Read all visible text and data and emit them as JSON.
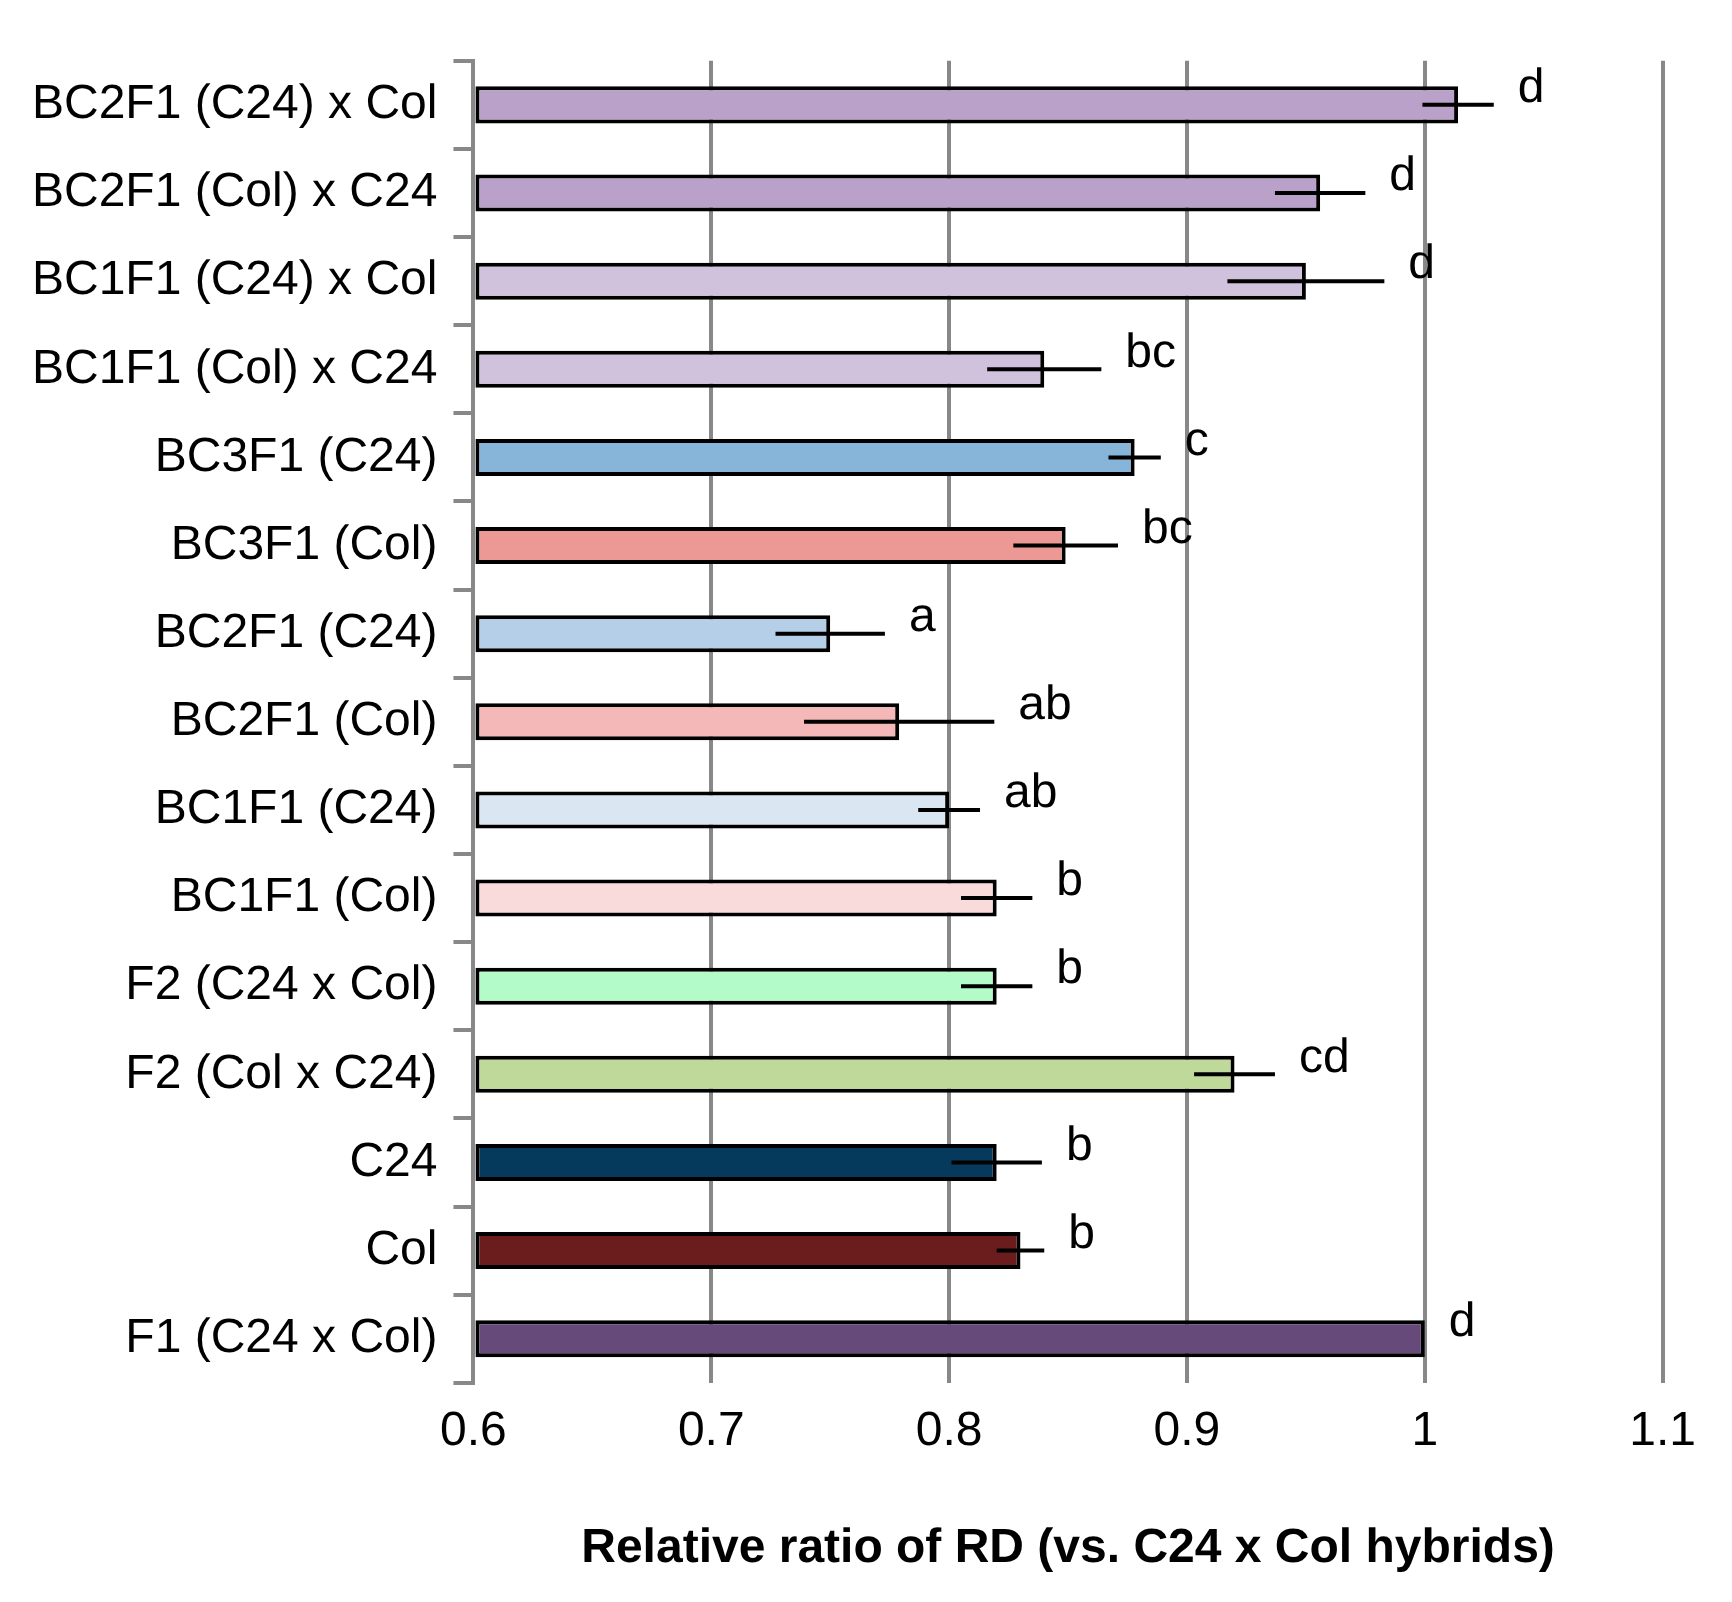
{
  "chart_data": {
    "type": "bar",
    "orientation": "horizontal",
    "xlabel": "Relative ratio of RD (vs. C24 x Col hybrids)",
    "categories": [
      "BC2F1 (C24) x Col",
      "BC2F1 (Col) x C24",
      "BC1F1 (C24) x Col",
      "BC1F1 (Col) x C24",
      "BC3F1 (C24)",
      "BC3F1 (Col)",
      "BC2F1 (C24)",
      "BC2F1 (Col)",
      "BC1F1 (C24)",
      "BC1F1 (Col)",
      "F2 (C24 x Col)",
      "F2 (Col x C24)",
      "C24",
      "Col",
      "F1 (C24 x Col)"
    ],
    "values": [
      1.014,
      0.956,
      0.95,
      0.84,
      0.878,
      0.849,
      0.75,
      0.779,
      0.8,
      0.82,
      0.82,
      0.92,
      0.82,
      0.83,
      1.0
    ],
    "errors": [
      0.015,
      0.019,
      0.033,
      0.024,
      0.011,
      0.022,
      0.023,
      0.04,
      0.013,
      0.015,
      0.015,
      0.017,
      0.019,
      0.01,
      null
    ],
    "colors": [
      "#b9a1c9",
      "#b9a1c9",
      "#d0c1dd",
      "#d0c1dd",
      "#87b4d9",
      "#ec9894",
      "#b6cfe8",
      "#f5b8b8",
      "#dae6f2",
      "#fadbdb",
      "#b3fcc9",
      "#bfd99a",
      "#063a5c",
      "#6b1d1d",
      "#654a7a"
    ],
    "xlim": [
      0.6,
      1.1
    ],
    "xticks": [
      0.6,
      0.7,
      0.8,
      0.9,
      1,
      1.1
    ],
    "grid": "x",
    "annotations": [
      "d",
      "d",
      "d",
      "bc",
      "c",
      "bc",
      "a",
      "ab",
      "ab",
      "b",
      "b",
      "cd",
      "b",
      "b",
      "d"
    ]
  }
}
